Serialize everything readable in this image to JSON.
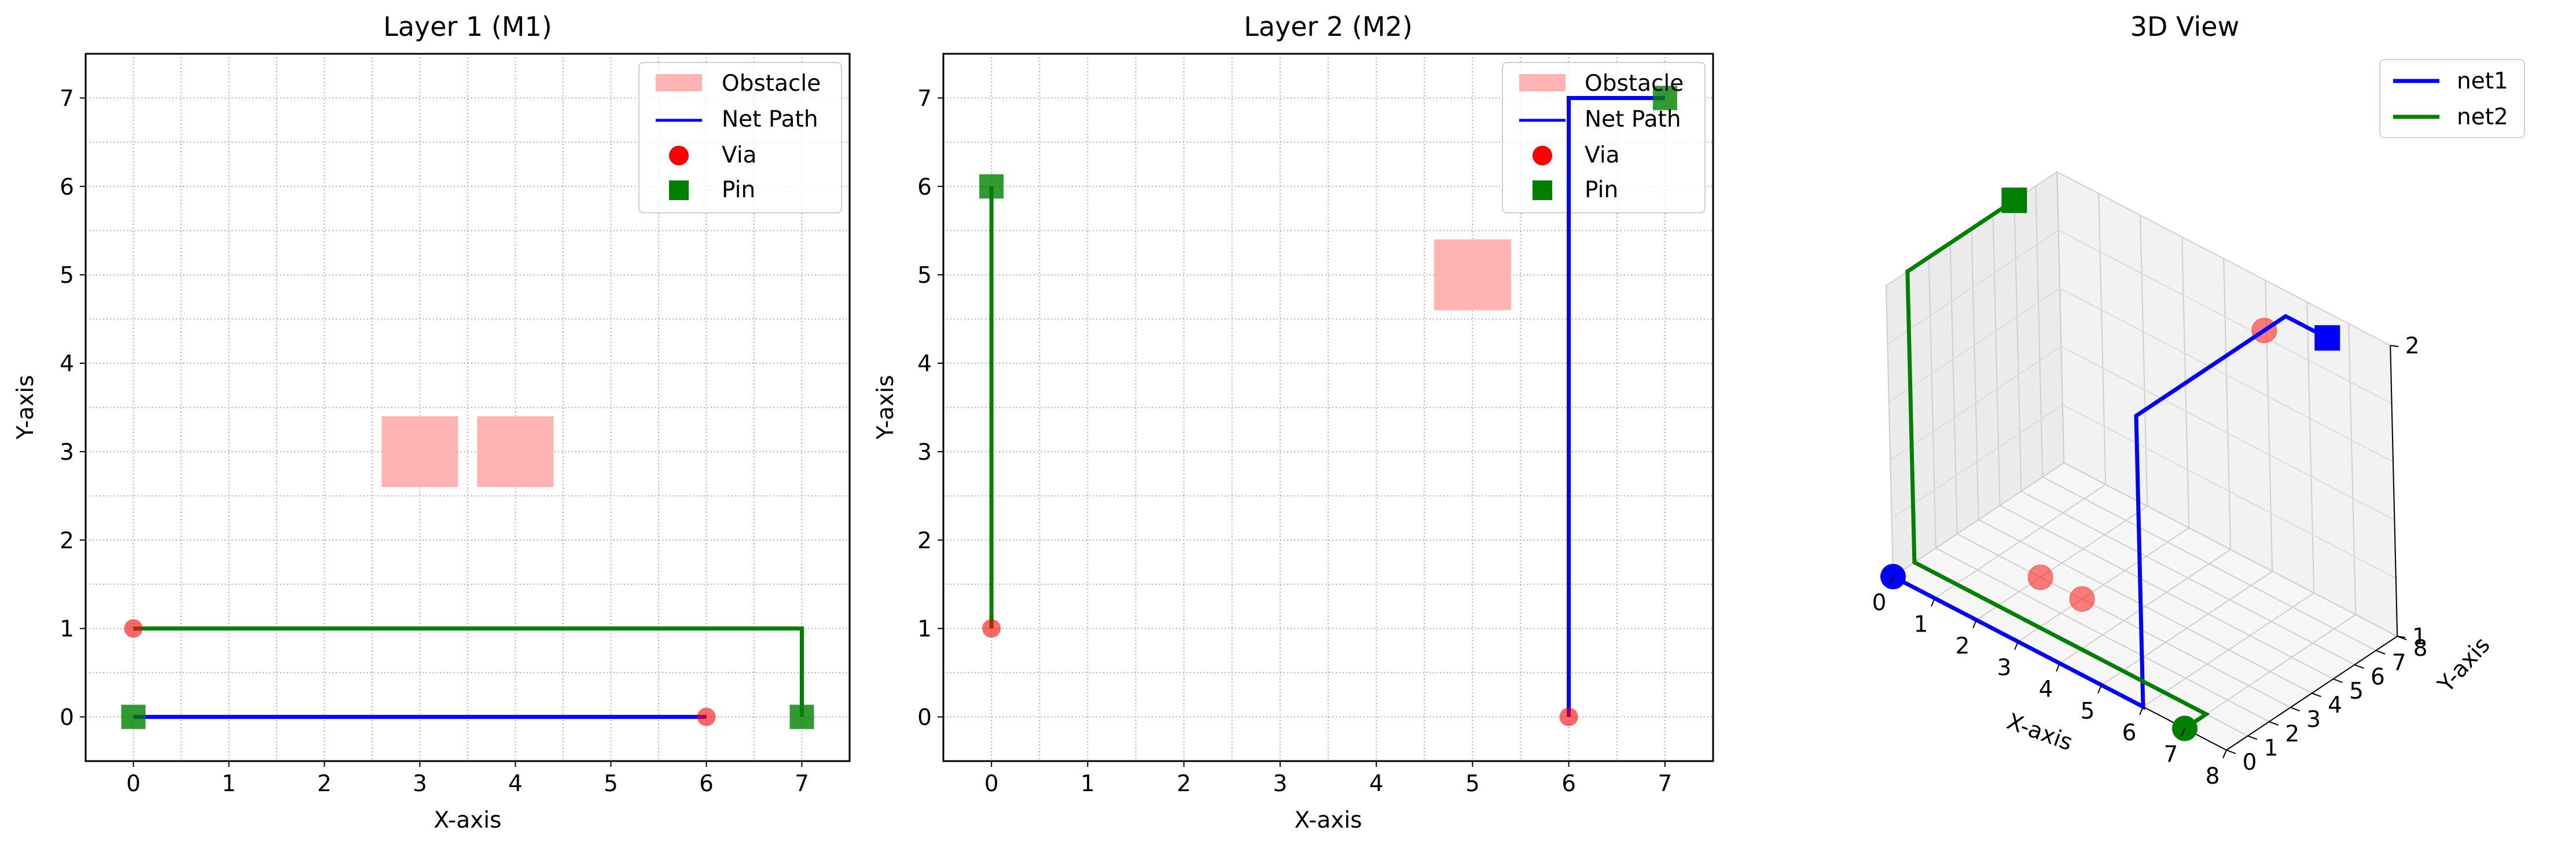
{
  "chart_data": [
    {
      "type": "line",
      "title": "Layer 1 (M1)",
      "xlabel": "X-axis",
      "ylabel": "Y-axis",
      "xlim": [
        -0.5,
        7.5
      ],
      "ylim": [
        -0.5,
        7.5
      ],
      "xticks": [
        0,
        1,
        2,
        3,
        4,
        5,
        6,
        7
      ],
      "yticks": [
        0,
        1,
        2,
        3,
        4,
        5,
        6,
        7
      ],
      "grid": true,
      "obstacles": [
        {
          "x0": 2.6,
          "y0": 2.6,
          "x1": 3.4,
          "y1": 3.4
        },
        {
          "x0": 3.6,
          "y0": 2.6,
          "x1": 4.4,
          "y1": 3.4
        }
      ],
      "paths": [
        {
          "net": "net1",
          "color": "#0000ff",
          "points": [
            [
              0,
              0
            ],
            [
              6,
              0
            ]
          ]
        },
        {
          "net": "net2",
          "color": "#008000",
          "points": [
            [
              0,
              1
            ],
            [
              7,
              1
            ],
            [
              7,
              0
            ]
          ]
        }
      ],
      "vias": [
        [
          0,
          1
        ],
        [
          6,
          0
        ]
      ],
      "pins": [
        [
          0,
          0
        ],
        [
          7,
          0
        ]
      ],
      "legend": {
        "placement": "upper right",
        "entries": [
          "Obstacle",
          "Net Path",
          "Via",
          "Pin"
        ]
      }
    },
    {
      "type": "line",
      "title": "Layer 2 (M2)",
      "xlabel": "X-axis",
      "ylabel": "Y-axis",
      "xlim": [
        -0.5,
        7.5
      ],
      "ylim": [
        -0.5,
        7.5
      ],
      "xticks": [
        0,
        1,
        2,
        3,
        4,
        5,
        6,
        7
      ],
      "yticks": [
        0,
        1,
        2,
        3,
        4,
        5,
        6,
        7
      ],
      "grid": true,
      "obstacles": [
        {
          "x0": 4.6,
          "y0": 4.6,
          "x1": 5.4,
          "y1": 5.4
        }
      ],
      "paths": [
        {
          "net": "net2",
          "color": "#008000",
          "points": [
            [
              0,
              1
            ],
            [
              0,
              6
            ]
          ]
        },
        {
          "net": "net1",
          "color": "#0000ff",
          "points": [
            [
              6,
              0
            ],
            [
              6,
              7
            ],
            [
              7,
              7
            ]
          ]
        }
      ],
      "vias": [
        [
          0,
          1
        ],
        [
          6,
          0
        ]
      ],
      "pins": [
        [
          0,
          6
        ],
        [
          7,
          7
        ]
      ],
      "legend": {
        "placement": "upper right",
        "entries": [
          "Obstacle",
          "Net Path",
          "Via",
          "Pin"
        ]
      }
    },
    {
      "type": "line3d",
      "title": "3D View",
      "xlabel": "X-axis",
      "ylabel": "Y-axis",
      "xlim": [
        0,
        8
      ],
      "ylim": [
        0,
        8
      ],
      "zlim": [
        1,
        2
      ],
      "xticks": [
        0,
        1,
        2,
        3,
        4,
        5,
        6,
        7,
        8
      ],
      "yticks": [
        0,
        1,
        2,
        3,
        4,
        5,
        6,
        7,
        8
      ],
      "zticks": [
        1,
        2
      ],
      "series": [
        {
          "name": "net1",
          "color": "#0000ff",
          "points": [
            [
              0,
              0,
              1
            ],
            [
              6,
              0,
              1
            ],
            [
              6,
              0,
              2
            ],
            [
              6,
              7,
              2
            ],
            [
              7,
              7,
              2
            ]
          ],
          "start": [
            0,
            0,
            1
          ],
          "end": [
            7,
            7,
            2
          ]
        },
        {
          "name": "net2",
          "color": "#008000",
          "points": [
            [
              7,
              0,
              1
            ],
            [
              7,
              1,
              1
            ],
            [
              0,
              1,
              1
            ],
            [
              0,
              1,
              2
            ],
            [
              0,
              6,
              2
            ]
          ],
          "start": [
            7,
            0,
            1
          ],
          "end": [
            0,
            6,
            2
          ]
        }
      ],
      "vias": [
        [
          2,
          3,
          1
        ],
        [
          3,
          3,
          1
        ],
        [
          6,
          6,
          2
        ]
      ],
      "legend": {
        "placement": "upper right",
        "entries": [
          "net1",
          "net2"
        ]
      }
    }
  ],
  "colors": {
    "obstacle": "#ffb3b3",
    "via": "#ff0000",
    "pin": "#008000",
    "grid": "#b0b0b0",
    "pane": "#f2f2f2"
  }
}
